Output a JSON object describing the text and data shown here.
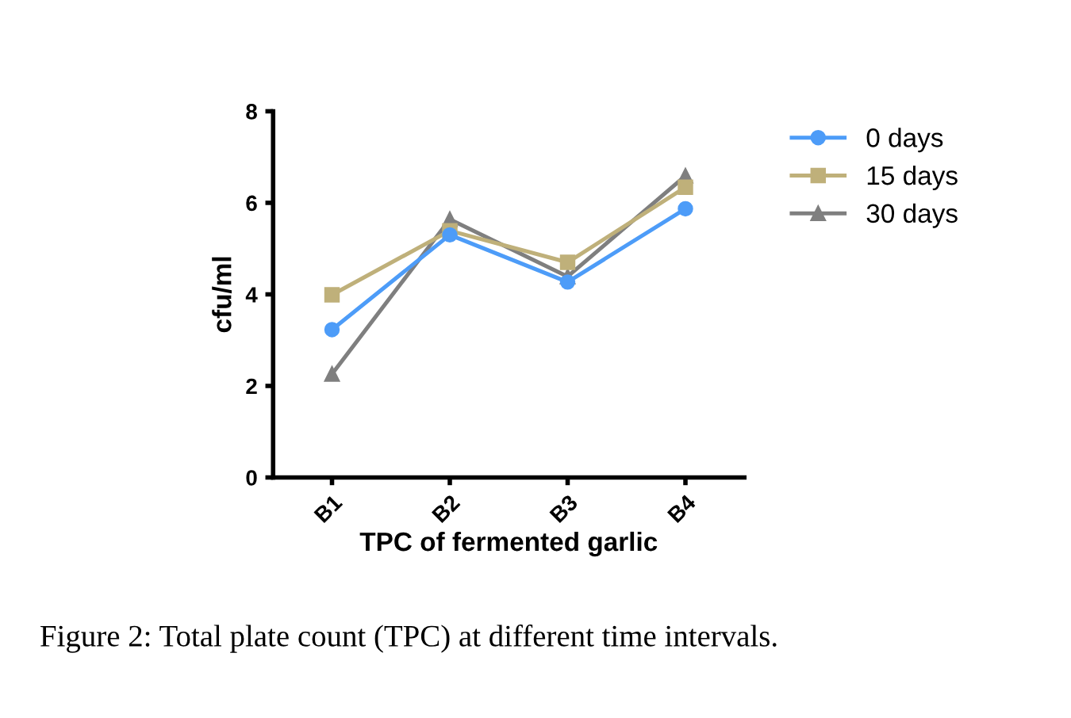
{
  "chart_data": {
    "type": "line",
    "xlabel": "TPC of fermented garlic",
    "ylabel": "cfu/ml",
    "categories": [
      "B1",
      "B2",
      "B3",
      "B4"
    ],
    "series": [
      {
        "name": "0 days",
        "color": "#4d9cf8",
        "marker": "circle",
        "values": [
          3.23,
          5.3,
          4.27,
          5.87
        ]
      },
      {
        "name": "15 days",
        "color": "#bfb07a",
        "marker": "square",
        "values": [
          3.99,
          5.39,
          4.7,
          6.34
        ]
      },
      {
        "name": "30 days",
        "color": "#7f7f7f",
        "marker": "triangle",
        "values": [
          2.26,
          5.64,
          4.39,
          6.59
        ]
      }
    ],
    "ylim": [
      0,
      8
    ],
    "yticks": [
      0,
      2,
      4,
      6,
      8
    ],
    "grid": false,
    "legend": "top right",
    "line_style": "solid",
    "annotations": [
      "Figure 2: Total plate count (TPC) at different time intervals."
    ]
  }
}
